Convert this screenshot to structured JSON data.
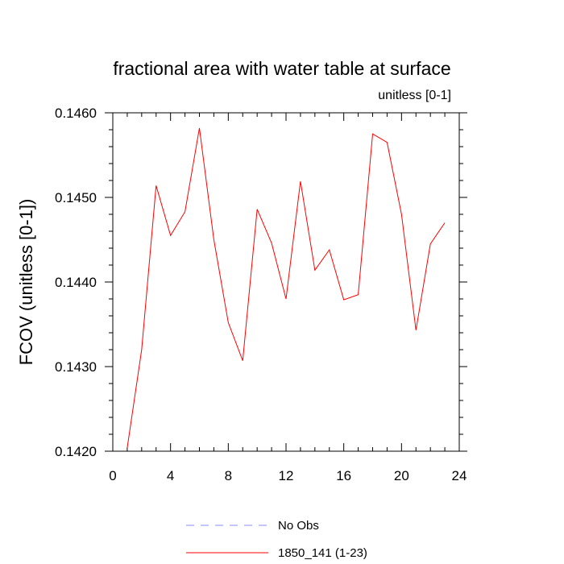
{
  "chart_data": {
    "type": "line",
    "title": "fractional area with water table at surface",
    "subtitle": "unitless [0-1]",
    "xlabel": "",
    "ylabel": "FCOV  (unitless [0-1])",
    "xlim": [
      0,
      24
    ],
    "ylim": [
      0.142,
      0.146
    ],
    "x_ticks": [
      "0",
      "4",
      "8",
      "12",
      "16",
      "20",
      "24"
    ],
    "y_ticks": [
      "0.1420",
      "0.1430",
      "0.1440",
      "0.1450",
      "0.1460"
    ],
    "grid": false,
    "legend_placement": "bottom-center",
    "series": [
      {
        "name": "No Obs",
        "color": "#8a8aff",
        "style": "dashed",
        "x": [],
        "values": []
      },
      {
        "name": "1850_141 (1-23)",
        "color": "#ff0000",
        "style": "solid",
        "x": [
          1,
          2,
          3,
          4,
          5,
          6,
          7,
          8,
          9,
          10,
          11,
          12,
          13,
          14,
          15,
          16,
          17,
          18,
          19,
          20,
          21,
          22,
          23
        ],
        "values": [
          0.14204,
          0.1432,
          0.14514,
          0.14455,
          0.14483,
          0.14582,
          0.1445,
          0.14352,
          0.14307,
          0.14486,
          0.14446,
          0.1438,
          0.14519,
          0.14414,
          0.14438,
          0.14379,
          0.14385,
          0.14575,
          0.14565,
          0.1448,
          0.14343,
          0.14445,
          0.1447
        ]
      }
    ]
  }
}
